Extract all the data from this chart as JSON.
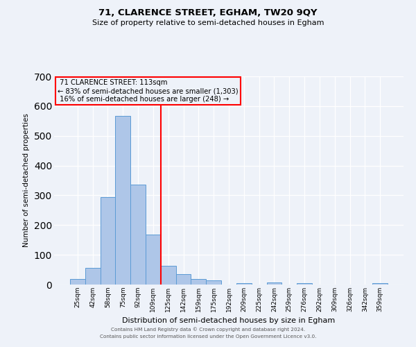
{
  "title": "71, CLARENCE STREET, EGHAM, TW20 9QY",
  "subtitle": "Size of property relative to semi-detached houses in Egham",
  "xlabel": "Distribution of semi-detached houses by size in Egham",
  "ylabel": "Number of semi-detached properties",
  "bar_labels": [
    "25sqm",
    "42sqm",
    "58sqm",
    "75sqm",
    "92sqm",
    "109sqm",
    "125sqm",
    "142sqm",
    "159sqm",
    "175sqm",
    "192sqm",
    "209sqm",
    "225sqm",
    "242sqm",
    "259sqm",
    "276sqm",
    "292sqm",
    "309sqm",
    "326sqm",
    "342sqm",
    "359sqm"
  ],
  "bar_values": [
    18,
    55,
    293,
    568,
    335,
    168,
    62,
    35,
    18,
    13,
    0,
    5,
    0,
    6,
    0,
    5,
    0,
    0,
    0,
    0,
    5
  ],
  "bar_color": "#aec6e8",
  "bar_edge_color": "#5b9bd5",
  "vline_index": 5,
  "property_label": "71 CLARENCE STREET: 113sqm",
  "pct_smaller": 83,
  "count_smaller": 1303,
  "pct_larger": 16,
  "count_larger": 248,
  "vline_color": "red",
  "annotation_box_color": "red",
  "ylim": [
    0,
    700
  ],
  "yticks": [
    0,
    100,
    200,
    300,
    400,
    500,
    600,
    700
  ],
  "background_color": "#eef2f9",
  "grid_color": "#ffffff",
  "footer_line1": "Contains HM Land Registry data © Crown copyright and database right 2024.",
  "footer_line2": "Contains public sector information licensed under the Open Government Licence v3.0."
}
